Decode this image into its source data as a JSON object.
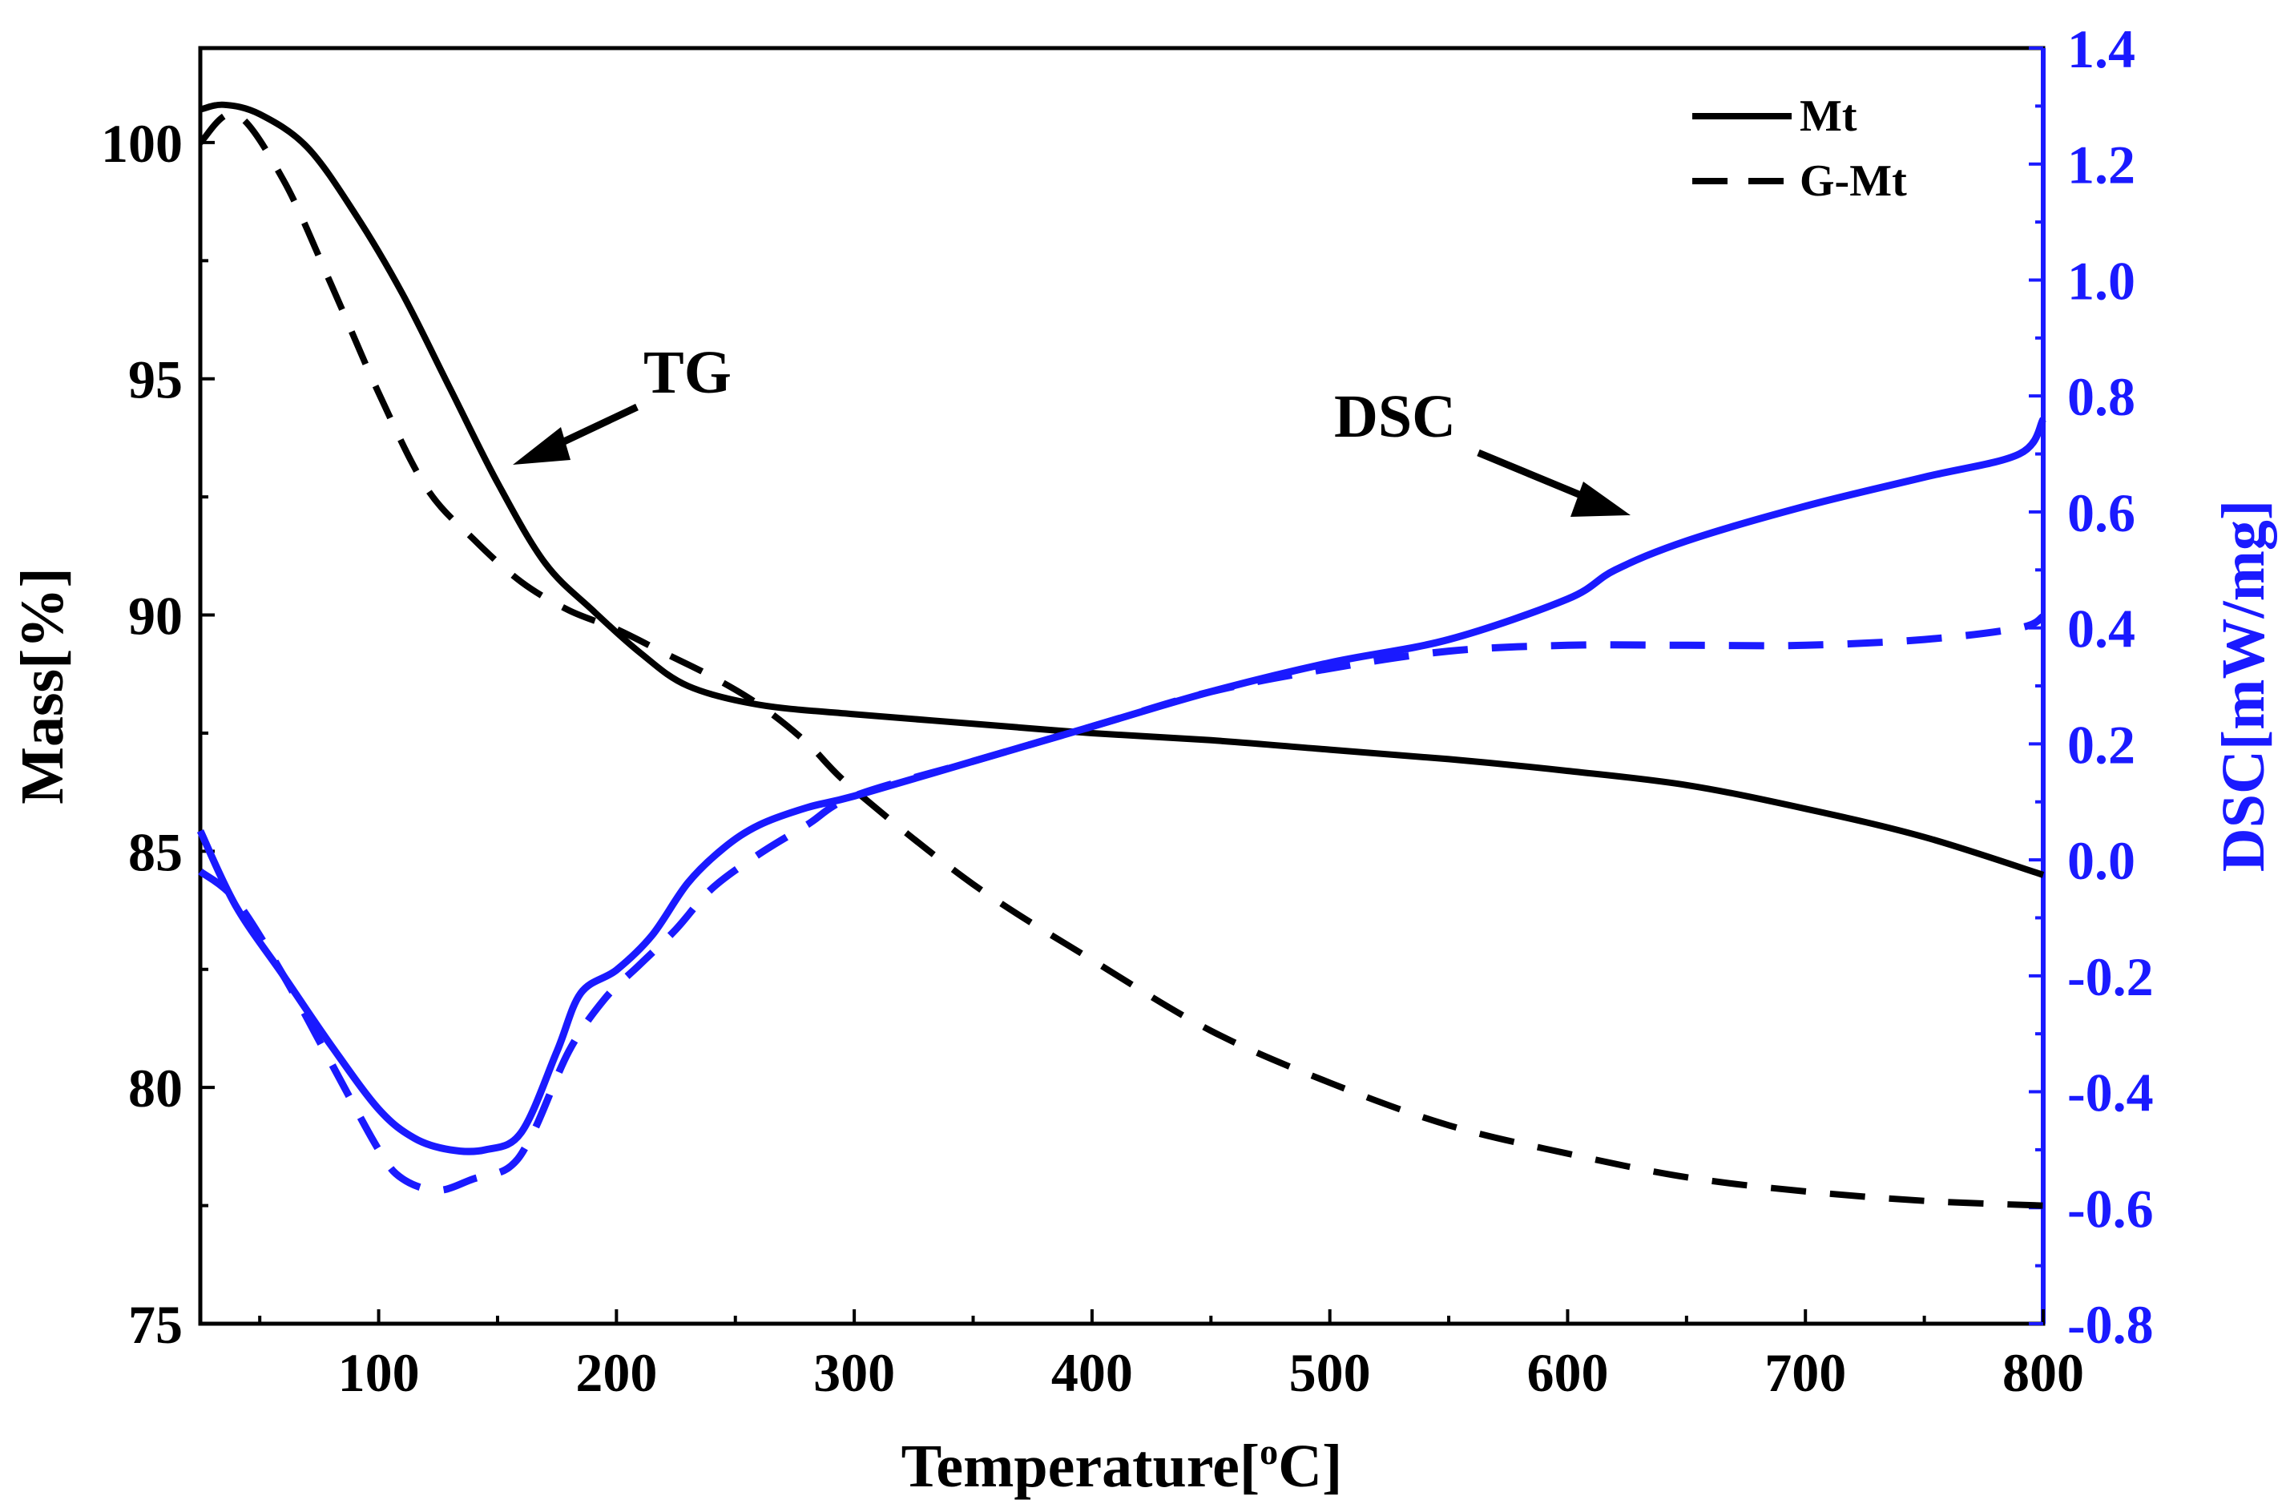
{
  "chart_data": {
    "type": "line",
    "title": "",
    "xlabel": "Temperature[°C]",
    "xlabel_parts": {
      "pre": "Temperature[",
      "sup": "o",
      "post": "C]"
    },
    "ylabel": "Mass[%]",
    "y2label": "DSC[mW/mg]",
    "xlim": [
      25,
      800
    ],
    "ylim": [
      75,
      102
    ],
    "y2lim": [
      -0.8,
      1.4
    ],
    "xticks": [
      100,
      200,
      300,
      400,
      500,
      600,
      700,
      800
    ],
    "yticks": [
      75,
      80,
      85,
      90,
      95,
      100
    ],
    "y2ticks": [
      -0.8,
      -0.6,
      -0.4,
      -0.2,
      0.0,
      0.2,
      0.4,
      0.6,
      0.8,
      1.0,
      1.2,
      1.4
    ],
    "ytick_labels": [
      "75",
      "80",
      "85",
      "90",
      "95",
      "100"
    ],
    "y2tick_labels": [
      "-0.8",
      "-0.6",
      "-0.4",
      "-0.2",
      "0.0",
      "0.2",
      "0.4",
      "0.6",
      "0.8",
      "1.0",
      "1.2",
      "1.4"
    ],
    "xtick_labels": [
      "100",
      "200",
      "300",
      "400",
      "500",
      "600",
      "700",
      "800"
    ],
    "legend": {
      "position": "top-right",
      "entries": [
        {
          "label": "Mt",
          "style": "solid"
        },
        {
          "label": "G-Mt",
          "style": "dashed"
        }
      ]
    },
    "annotations": [
      {
        "text": "TG",
        "points_to": "TG curves"
      },
      {
        "text": "DSC",
        "points_to": "DSC curves"
      }
    ],
    "colors": {
      "tg": "#000000",
      "dsc": "#1a1aff"
    },
    "series": [
      {
        "name": "Mt",
        "kind": "TG",
        "axis": "left",
        "style": "solid",
        "color": "#000000",
        "x": [
          25,
          35,
          50,
          70,
          90,
          110,
          130,
          150,
          170,
          190,
          210,
          230,
          260,
          300,
          350,
          400,
          450,
          500,
          550,
          600,
          650,
          700,
          750,
          800
        ],
        "y": [
          100.7,
          100.8,
          100.6,
          99.9,
          98.5,
          96.8,
          94.8,
          92.8,
          91.1,
          90.1,
          89.2,
          88.5,
          88.1,
          87.9,
          87.7,
          87.5,
          87.35,
          87.15,
          86.95,
          86.7,
          86.4,
          85.9,
          85.3,
          84.5
        ]
      },
      {
        "name": "G-Mt",
        "kind": "TG",
        "axis": "left",
        "style": "dashed",
        "color": "#000000",
        "x": [
          25,
          40,
          60,
          80,
          100,
          120,
          140,
          160,
          180,
          200,
          220,
          240,
          260,
          280,
          300,
          350,
          400,
          450,
          500,
          550,
          600,
          650,
          700,
          750,
          800
        ],
        "y": [
          100.0,
          100.6,
          99.2,
          97.0,
          94.7,
          92.7,
          91.6,
          90.7,
          90.1,
          89.7,
          89.2,
          88.7,
          88.1,
          87.3,
          86.3,
          84.3,
          82.7,
          81.2,
          80.1,
          79.2,
          78.6,
          78.1,
          77.8,
          77.6,
          77.5
        ]
      },
      {
        "name": "Mt",
        "kind": "DSC",
        "axis": "right",
        "style": "solid",
        "color": "#1a1aff",
        "x": [
          25,
          40,
          60,
          80,
          100,
          115,
          130,
          145,
          160,
          175,
          185,
          200,
          215,
          230,
          245,
          260,
          280,
          300,
          350,
          400,
          450,
          500,
          550,
          600,
          620,
          650,
          700,
          750,
          790,
          800
        ],
        "y": [
          0.05,
          -0.08,
          -0.2,
          -0.32,
          -0.43,
          -0.48,
          -0.5,
          -0.5,
          -0.47,
          -0.33,
          -0.23,
          -0.19,
          -0.13,
          -0.04,
          0.02,
          0.06,
          0.09,
          0.11,
          0.17,
          0.23,
          0.29,
          0.34,
          0.38,
          0.45,
          0.5,
          0.55,
          0.61,
          0.66,
          0.7,
          0.76
        ]
      },
      {
        "name": "G-Mt",
        "kind": "DSC",
        "axis": "right",
        "style": "dashed",
        "color": "#1a1aff",
        "x": [
          25,
          40,
          60,
          80,
          100,
          110,
          125,
          140,
          155,
          165,
          180,
          195,
          210,
          225,
          240,
          260,
          280,
          300,
          350,
          400,
          450,
          500,
          550,
          600,
          650,
          700,
          750,
          790,
          800
        ],
        "y": [
          -0.02,
          -0.07,
          -0.2,
          -0.35,
          -0.5,
          -0.55,
          -0.57,
          -0.55,
          -0.53,
          -0.47,
          -0.33,
          -0.24,
          -0.18,
          -0.12,
          -0.05,
          0.01,
          0.06,
          0.11,
          0.17,
          0.23,
          0.29,
          0.33,
          0.36,
          0.37,
          0.37,
          0.37,
          0.38,
          0.4,
          0.42
        ]
      }
    ]
  }
}
